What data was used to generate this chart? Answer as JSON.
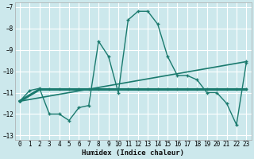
{
  "xlabel": "Humidex (Indice chaleur)",
  "bg_color": "#cce8ec",
  "grid_color": "#ffffff",
  "line_color": "#1a7a6e",
  "xlim": [
    -0.5,
    23.5
  ],
  "ylim": [
    -13.2,
    -6.8
  ],
  "yticks": [
    -13,
    -12,
    -11,
    -10,
    -9,
    -8,
    -7
  ],
  "xticks": [
    0,
    1,
    2,
    3,
    4,
    5,
    6,
    7,
    8,
    9,
    10,
    11,
    12,
    13,
    14,
    15,
    16,
    17,
    18,
    19,
    20,
    21,
    22,
    23
  ],
  "line1_x": [
    0,
    1,
    2,
    3,
    4,
    5,
    6,
    7,
    8,
    9,
    10,
    11,
    12,
    13,
    14,
    15,
    16,
    17,
    18,
    19,
    20,
    21,
    22,
    23
  ],
  "line1_y": [
    -11.4,
    -10.9,
    -10.8,
    -12.0,
    -12.0,
    -12.3,
    -11.7,
    -11.6,
    -8.6,
    -9.3,
    -11.0,
    -7.6,
    -7.2,
    -7.2,
    -7.8,
    -9.3,
    -10.2,
    -10.2,
    -10.4,
    -11.0,
    -11.0,
    -11.5,
    -12.5,
    -9.6
  ],
  "line2_x": [
    0,
    2,
    3,
    4,
    5,
    6,
    7,
    8,
    9,
    10,
    11,
    12,
    13,
    14,
    15,
    16,
    17,
    18,
    19,
    20,
    21,
    22,
    23
  ],
  "line2_y": [
    -11.4,
    -10.85,
    -10.85,
    -10.85,
    -10.85,
    -10.85,
    -10.85,
    -10.85,
    -10.85,
    -10.85,
    -10.85,
    -10.85,
    -10.85,
    -10.85,
    -10.85,
    -10.85,
    -10.85,
    -10.85,
    -10.85,
    -10.85,
    -10.85,
    -10.85,
    -10.85
  ],
  "line3_x": [
    0,
    23
  ],
  "line3_y": [
    -11.4,
    -9.55
  ]
}
